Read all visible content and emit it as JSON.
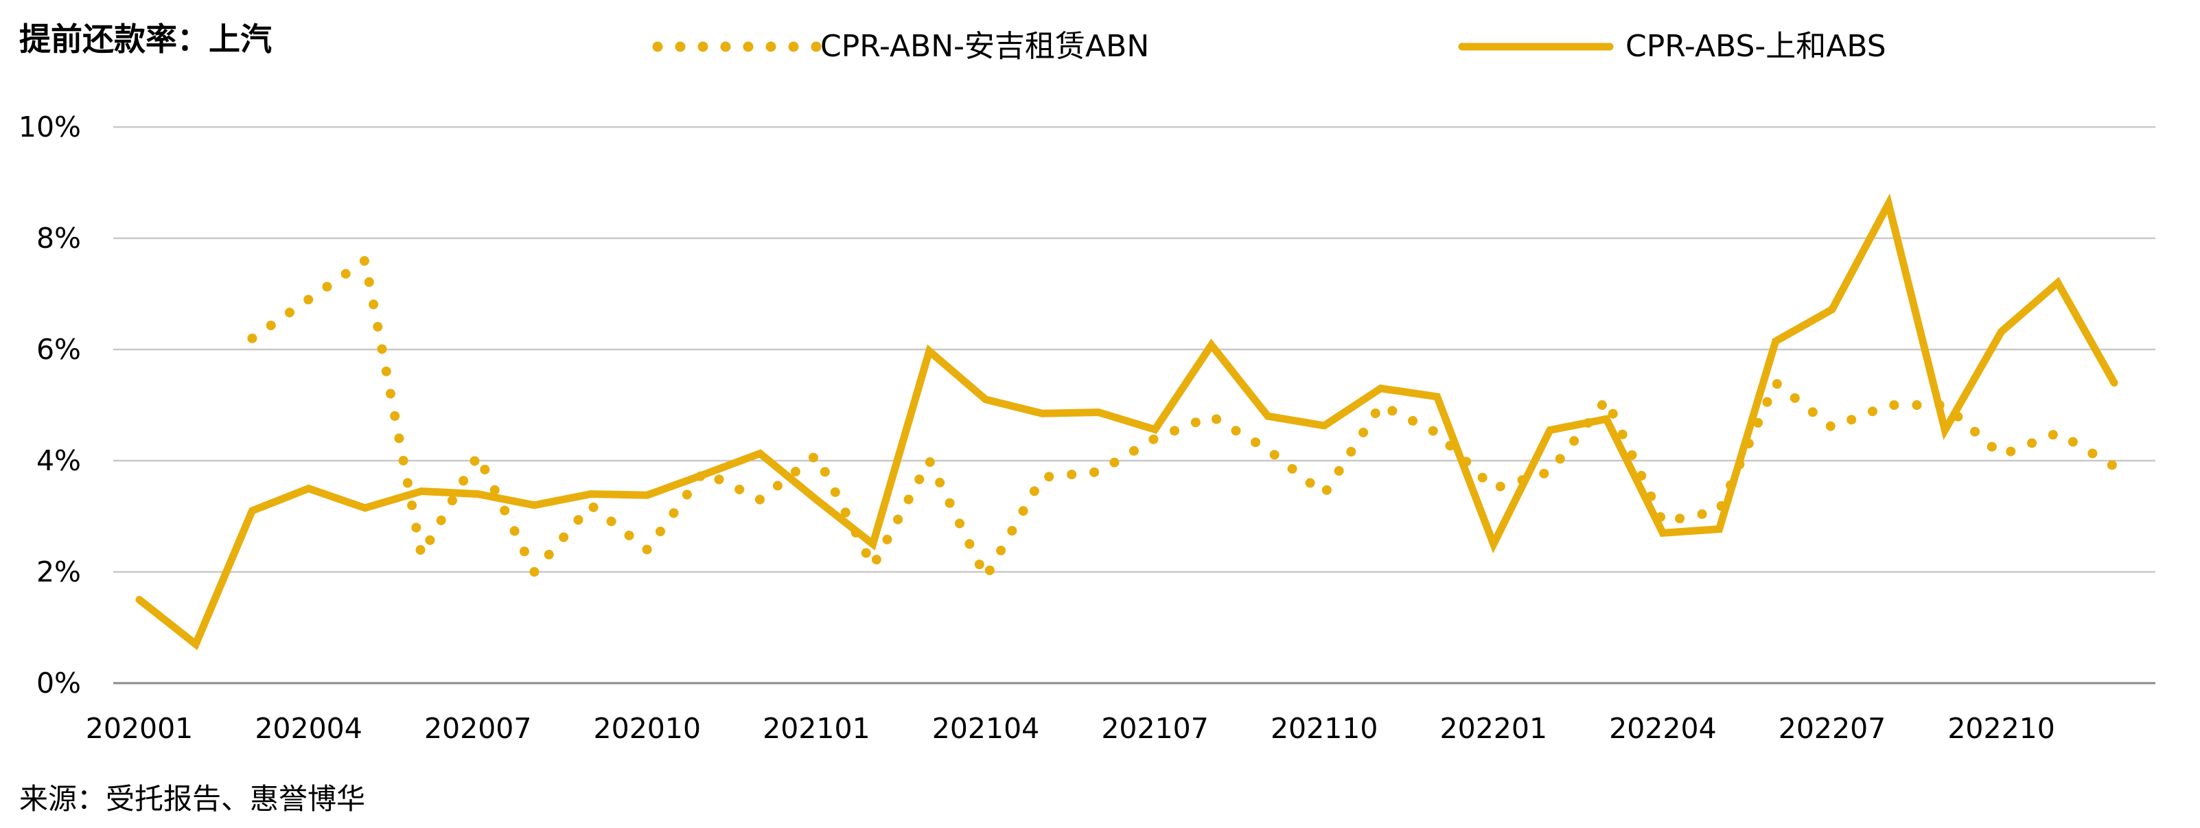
{
  "chart_data": {
    "type": "line",
    "title": "提前还款率：上汽",
    "source": "来源：受托报告、惠誉博华",
    "xlabel": "",
    "ylabel": "",
    "ylim": [
      0,
      10
    ],
    "y_tick_labels": [
      "0%",
      "2%",
      "4%",
      "6%",
      "8%",
      "10%"
    ],
    "x_tick_labels": [
      "202001",
      "202004",
      "202007",
      "202010",
      "202101",
      "202104",
      "202107",
      "202110",
      "202201",
      "202204",
      "202207",
      "202210"
    ],
    "grid": "horizontal",
    "legend_position": "top",
    "x": [
      "202001",
      "202002",
      "202003",
      "202004",
      "202005",
      "202006",
      "202007",
      "202008",
      "202009",
      "202010",
      "202011",
      "202012",
      "202101",
      "202102",
      "202103",
      "202104",
      "202105",
      "202106",
      "202107",
      "202108",
      "202109",
      "202110",
      "202111",
      "202112",
      "202201",
      "202202",
      "202203",
      "202204",
      "202205",
      "202206",
      "202207",
      "202208",
      "202209",
      "202210",
      "202211",
      "202212"
    ],
    "series": [
      {
        "name": "CPR-ABN-安吉租赁ABN",
        "style": "dotted",
        "color": "#E8AE0C",
        "values": [
          null,
          null,
          6.2,
          6.9,
          7.6,
          2.3,
          4.1,
          2.0,
          3.2,
          2.4,
          3.8,
          3.3,
          4.1,
          2.1,
          4.0,
          1.9,
          3.7,
          3.8,
          4.4,
          4.8,
          4.2,
          3.4,
          5.0,
          4.5,
          3.5,
          3.8,
          5.1,
          2.9,
          3.1,
          5.4,
          4.6,
          5.0,
          5.0,
          4.1,
          4.5,
          3.9
        ]
      },
      {
        "name": "CPR-ABS-上和ABS",
        "style": "solid",
        "color": "#E8AE0C",
        "values": [
          1.5,
          0.7,
          3.1,
          3.5,
          3.15,
          3.45,
          3.4,
          3.2,
          3.4,
          3.38,
          3.75,
          4.13,
          3.3,
          2.5,
          5.97,
          5.1,
          4.85,
          4.87,
          4.56,
          6.08,
          4.8,
          4.63,
          5.3,
          5.15,
          2.5,
          4.55,
          4.75,
          2.7,
          2.77,
          6.15,
          6.72,
          8.62,
          4.55,
          6.32,
          7.2,
          5.4
        ]
      }
    ]
  }
}
